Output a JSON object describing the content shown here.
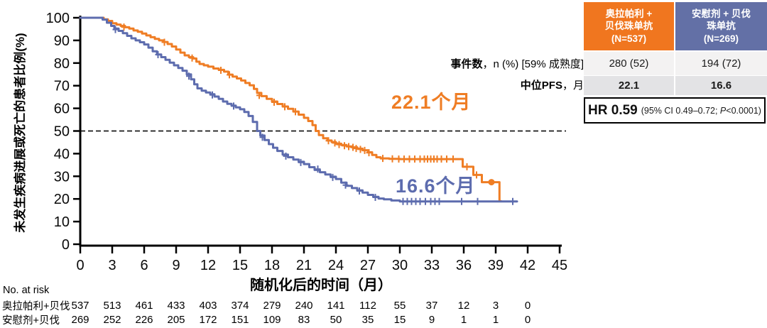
{
  "colors": {
    "olaparib_orange": "#EF7D24",
    "placebo_blue": "#5D6CAE",
    "header_orange": "#F0761F",
    "header_blue": "#6370A6",
    "reference_line": "#1a1a1a",
    "axis": "#000000"
  },
  "chart_data": {
    "type": "line",
    "subtype": "kaplan-meier-step",
    "title": "",
    "xlabel": "随机化后的时间（月）",
    "ylabel": "未发生疾病进展或死亡的患者比例(%)",
    "xlim": [
      0,
      45
    ],
    "ylim": [
      0,
      100
    ],
    "xticks": [
      0,
      3,
      6,
      9,
      12,
      15,
      18,
      21,
      24,
      27,
      30,
      33,
      36,
      39,
      42,
      45
    ],
    "yticks": [
      0,
      10,
      20,
      30,
      40,
      50,
      60,
      70,
      80,
      90,
      100
    ],
    "grid": false,
    "reference_line_y": 50,
    "annotations": [
      {
        "text": "22.1个月",
        "color": "#EF7D24",
        "series": "奥拉帕利+贝伐珠单抗"
      },
      {
        "text": "16.6个月",
        "color": "#5D6CAE",
        "series": "安慰剂+贝伐珠单抗"
      }
    ],
    "series": [
      {
        "name": "奥拉帕利+贝伐珠单抗",
        "color": "#EF7D24",
        "median_pfs_months": 22.1,
        "points": [
          [
            0,
            100
          ],
          [
            1.8,
            100
          ],
          [
            2.2,
            99.3
          ],
          [
            2.6,
            98.6
          ],
          [
            3,
            97.6
          ],
          [
            3.4,
            97
          ],
          [
            3.8,
            96.4
          ],
          [
            4.2,
            95.8
          ],
          [
            4.6,
            95.2
          ],
          [
            5,
            94.4
          ],
          [
            5.4,
            93.8
          ],
          [
            5.8,
            93
          ],
          [
            6.2,
            92.2
          ],
          [
            6.6,
            91.4
          ],
          [
            7,
            90.7
          ],
          [
            7.4,
            90
          ],
          [
            7.8,
            89.3
          ],
          [
            8.2,
            88.4
          ],
          [
            8.6,
            87.3
          ],
          [
            9,
            86
          ],
          [
            9.4,
            84.6
          ],
          [
            9.8,
            83.4
          ],
          [
            10.2,
            82.6
          ],
          [
            10.6,
            82
          ],
          [
            10.9,
            80.6
          ],
          [
            11.2,
            79.6
          ],
          [
            11.6,
            79
          ],
          [
            12,
            78.4
          ],
          [
            12.5,
            77.6
          ],
          [
            13,
            77
          ],
          [
            13.5,
            76.2
          ],
          [
            13.9,
            74.9
          ],
          [
            14.3,
            74
          ],
          [
            14.7,
            73.2
          ],
          [
            15.1,
            72.3
          ],
          [
            15.5,
            71.2
          ],
          [
            15.9,
            70.2
          ],
          [
            16.3,
            68.6
          ],
          [
            16.6,
            66.8
          ],
          [
            17,
            65.4
          ],
          [
            17.5,
            64.2
          ],
          [
            18,
            63
          ],
          [
            18.5,
            61.9
          ],
          [
            19,
            60.8
          ],
          [
            19.5,
            59.8
          ],
          [
            20,
            58.6
          ],
          [
            20.5,
            57.2
          ],
          [
            21,
            55.8
          ],
          [
            21.4,
            54.4
          ],
          [
            21.8,
            52.6
          ],
          [
            22.1,
            50
          ],
          [
            22.4,
            48.2
          ],
          [
            22.8,
            46.8
          ],
          [
            23.2,
            45.8
          ],
          [
            23.6,
            45.1
          ],
          [
            24,
            44.4
          ],
          [
            24.5,
            43.8
          ],
          [
            25,
            43.2
          ],
          [
            25.5,
            42.8
          ],
          [
            26,
            42.2
          ],
          [
            26.5,
            41.5
          ],
          [
            27,
            40.6
          ],
          [
            27.4,
            39.4
          ],
          [
            27.8,
            38.4
          ],
          [
            28.2,
            37.9
          ],
          [
            29,
            37.7
          ],
          [
            30,
            37.6
          ],
          [
            35.5,
            37.6
          ],
          [
            35.9,
            34.2
          ],
          [
            36.9,
            30.6
          ],
          [
            37.7,
            27.4
          ],
          [
            39.3,
            27.4
          ],
          [
            39.35,
            19
          ],
          [
            39.5,
            19
          ]
        ],
        "censors": [
          [
            4.1,
            95.9
          ],
          [
            7.9,
            89.2
          ],
          [
            10.5,
            82.2
          ],
          [
            13.2,
            76.8
          ],
          [
            14,
            74.8
          ],
          [
            16.8,
            65.7
          ],
          [
            18.2,
            62.7
          ],
          [
            19.2,
            60.7
          ],
          [
            20.2,
            58.5
          ],
          [
            23.3,
            45.7
          ],
          [
            23.9,
            44.7
          ],
          [
            24.3,
            44
          ],
          [
            24.8,
            43.5
          ],
          [
            25.2,
            43.1
          ],
          [
            25.6,
            42.8
          ],
          [
            25.9,
            42.3
          ],
          [
            26.3,
            41.9
          ],
          [
            26.7,
            41.4
          ],
          [
            27.1,
            40.4
          ],
          [
            28.4,
            37.9
          ],
          [
            29.3,
            37.7
          ],
          [
            29.9,
            37.6
          ],
          [
            30.4,
            37.6
          ],
          [
            30.9,
            37.6
          ],
          [
            31.4,
            37.6
          ],
          [
            31.9,
            37.6
          ],
          [
            32.3,
            37.6
          ],
          [
            32.6,
            37.6
          ],
          [
            32.9,
            37.6
          ],
          [
            33.2,
            37.6
          ],
          [
            33.5,
            37.6
          ],
          [
            33.9,
            37.6
          ],
          [
            34.4,
            37.6
          ],
          [
            35,
            37.6
          ],
          [
            36.3,
            34.2
          ],
          [
            37.2,
            30.6
          ]
        ],
        "marker_dots": [
          [
            38.6,
            27.4
          ]
        ]
      },
      {
        "name": "安慰剂+贝伐珠单抗",
        "color": "#5D6CAE",
        "median_pfs_months": 16.6,
        "points": [
          [
            0,
            100
          ],
          [
            1.8,
            100
          ],
          [
            2.1,
            99.2
          ],
          [
            2.5,
            97.8
          ],
          [
            2.9,
            96.4
          ],
          [
            3.2,
            95.2
          ],
          [
            3.6,
            94.2
          ],
          [
            4,
            93.2
          ],
          [
            4.4,
            92
          ],
          [
            4.8,
            90.9
          ],
          [
            5.2,
            90
          ],
          [
            5.6,
            89.2
          ],
          [
            6,
            88.2
          ],
          [
            6.4,
            86.8
          ],
          [
            6.8,
            85.2
          ],
          [
            7.2,
            83.8
          ],
          [
            7.6,
            82.6
          ],
          [
            8,
            81.4
          ],
          [
            8.4,
            80.2
          ],
          [
            8.8,
            79
          ],
          [
            9.2,
            77.8
          ],
          [
            9.6,
            76.6
          ],
          [
            10,
            75
          ],
          [
            10.4,
            72.8
          ],
          [
            10.7,
            70.6
          ],
          [
            11,
            68.8
          ],
          [
            11.4,
            67.8
          ],
          [
            11.8,
            67
          ],
          [
            12.2,
            66.2
          ],
          [
            12.6,
            65.2
          ],
          [
            13,
            64.2
          ],
          [
            13.4,
            63
          ],
          [
            13.8,
            62
          ],
          [
            14.2,
            61.2
          ],
          [
            14.6,
            60.4
          ],
          [
            15,
            59.6
          ],
          [
            15.4,
            58.4
          ],
          [
            15.8,
            56.6
          ],
          [
            16.2,
            54
          ],
          [
            16.6,
            50
          ],
          [
            16.9,
            48
          ],
          [
            17.3,
            46
          ],
          [
            17.7,
            44.2
          ],
          [
            18.1,
            42.6
          ],
          [
            18.5,
            41.2
          ],
          [
            19,
            39.6
          ],
          [
            19.5,
            38.4
          ],
          [
            20,
            37.4
          ],
          [
            20.5,
            36.4
          ],
          [
            21,
            35.4
          ],
          [
            21.5,
            34
          ],
          [
            22,
            32.8
          ],
          [
            22.5,
            31.8
          ],
          [
            23,
            30.8
          ],
          [
            23.5,
            29.8
          ],
          [
            24,
            28.8
          ],
          [
            24.5,
            27.2
          ],
          [
            25,
            25.8
          ],
          [
            25.5,
            24.8
          ],
          [
            26,
            23.8
          ],
          [
            26.5,
            22.8
          ],
          [
            27,
            21.8
          ],
          [
            27.5,
            20.9
          ],
          [
            28,
            20.2
          ],
          [
            28.5,
            19.8
          ],
          [
            29.2,
            19.3
          ],
          [
            30,
            18.9
          ],
          [
            41,
            18.9
          ]
        ],
        "censors": [
          [
            3.3,
            94.8
          ],
          [
            7.3,
            83.7
          ],
          [
            10.2,
            74.2
          ],
          [
            12.4,
            65.9
          ],
          [
            14.4,
            61
          ],
          [
            17.1,
            47.2
          ],
          [
            19.3,
            38.9
          ],
          [
            20.7,
            36.1
          ],
          [
            22.3,
            33.2
          ],
          [
            23.7,
            29.5
          ],
          [
            24.9,
            26.1
          ],
          [
            26.2,
            23.5
          ],
          [
            27.7,
            20.7
          ],
          [
            30.3,
            18.9
          ],
          [
            30.7,
            18.9
          ],
          [
            31.1,
            18.9
          ],
          [
            31.5,
            18.9
          ],
          [
            31.9,
            18.9
          ],
          [
            32.4,
            18.9
          ],
          [
            32.9,
            18.9
          ],
          [
            33.3,
            18.9
          ],
          [
            33.7,
            18.9
          ],
          [
            35.8,
            18.9
          ],
          [
            37.3,
            18.9
          ],
          [
            40.6,
            18.9
          ]
        ],
        "marker_dots": []
      }
    ]
  },
  "stats_panel": {
    "events_label_bold": "事件数",
    "events_label_rest": "，n (%) [59% 成熟度]",
    "median_label_bold": "中位PFS",
    "median_label_rest": "，月",
    "columns": [
      {
        "header": "奥拉帕利 +\n贝伐珠单抗\n(N=537)",
        "events": "280 (52)",
        "median_pfs": "22.1"
      },
      {
        "header": "安慰剂 + 贝伐\n珠单抗\n(N=269)",
        "events": "194 (72)",
        "median_pfs": "16.6"
      }
    ],
    "hr_label": "HR 0.59",
    "hr_ci_prefix": "(95% CI 0.49–0.72; ",
    "hr_p_label": "P",
    "hr_p_value": "<0.0001)"
  },
  "risk_table": {
    "title": "No. at risk",
    "timepoints": [
      0,
      3,
      6,
      9,
      12,
      15,
      18,
      21,
      24,
      27,
      30,
      33,
      36,
      39,
      42
    ],
    "rows": [
      {
        "label": "奥拉帕利+贝伐",
        "values": [
          537,
          513,
          461,
          433,
          403,
          374,
          279,
          240,
          141,
          112,
          55,
          37,
          12,
          3,
          0
        ]
      },
      {
        "label": "安慰剂+贝伐",
        "values": [
          269,
          252,
          226,
          205,
          172,
          151,
          109,
          83,
          50,
          35,
          15,
          9,
          1,
          1,
          0
        ]
      }
    ]
  }
}
